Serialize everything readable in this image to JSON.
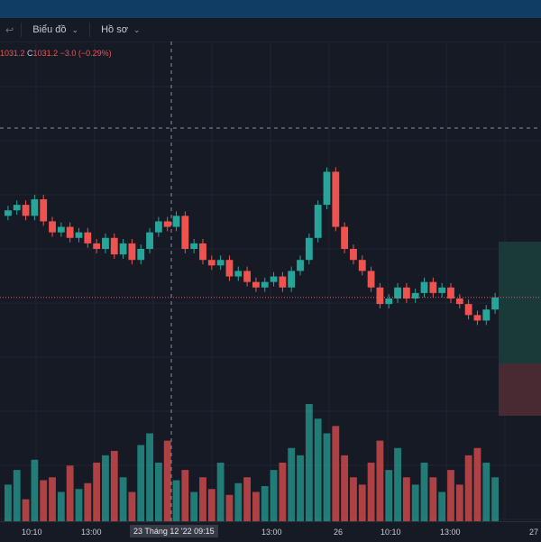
{
  "toolbar": {
    "undo_icon": "undo-arrow-icon",
    "chart_menu_label": "Biểu đồ",
    "profile_menu_label": "Hồ sơ"
  },
  "ohlc": {
    "partial_value": "1031.2",
    "close_label": "C",
    "close_value": "1031.2",
    "change": "−3.0 (−0.29%)"
  },
  "xaxis": {
    "ticks": [
      "10:10",
      "13:00",
      "13:00",
      "26",
      "10:10",
      "13:00",
      "27"
    ],
    "crosshair_label": "23 Tháng 12 '22   09:15"
  },
  "colors": {
    "up": "#26a69a",
    "down": "#ef5350",
    "background": "#161a25",
    "grid": "#1f2431",
    "long_target": "#1a3a3a",
    "long_stop": "#4a2a32"
  },
  "chart_data": {
    "type": "candlestick",
    "description_source": "price series with volume bars",
    "last_price": 1031.2,
    "change": -3.0,
    "change_percent": -0.29,
    "closes": [
      1047,
      1048,
      1046,
      1049,
      1045,
      1043,
      1044,
      1042,
      1043,
      1041,
      1040,
      1042,
      1039,
      1041,
      1038,
      1040,
      1043,
      1045,
      1044,
      1046,
      1040,
      1041,
      1038,
      1037,
      1038,
      1035,
      1036,
      1034,
      1033,
      1034,
      1035,
      1033,
      1036,
      1038,
      1042,
      1048,
      1054,
      1044,
      1040,
      1038,
      1036,
      1033,
      1030,
      1031,
      1033,
      1031,
      1032,
      1034,
      1032,
      1033,
      1031,
      1030,
      1028,
      1027,
      1029,
      1031.2
    ],
    "volumes": [
      25,
      35,
      15,
      42,
      28,
      30,
      20,
      38,
      22,
      26,
      40,
      45,
      48,
      30,
      20,
      52,
      60,
      40,
      55,
      28,
      35,
      20,
      30,
      22,
      40,
      18,
      26,
      30,
      20,
      24,
      35,
      40,
      50,
      45,
      80,
      70,
      60,
      65,
      45,
      30,
      25,
      40,
      55,
      35,
      50,
      30,
      25,
      40,
      30,
      20,
      35,
      25,
      45,
      50,
      40,
      30
    ]
  }
}
